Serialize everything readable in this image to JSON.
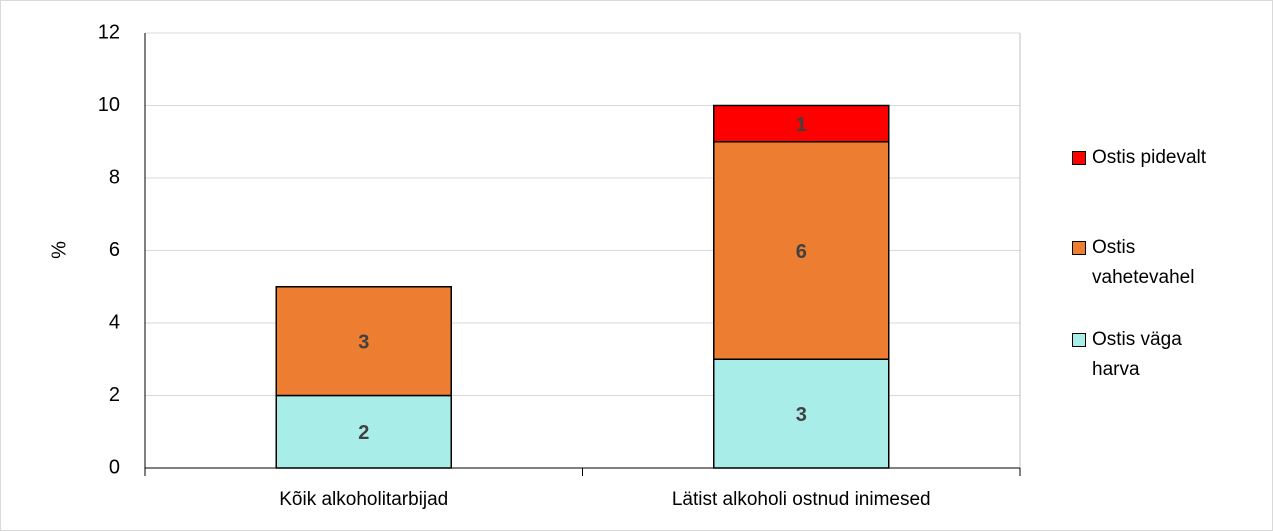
{
  "chart_data": {
    "type": "stacked_bar",
    "y_label": "%",
    "categories": [
      "Kõik alkoholitarbijad",
      "Lätist alkoholi ostnud inimesed"
    ],
    "series": [
      {
        "name": "Ostis väga harva",
        "color": "#a9ede8",
        "values": [
          2,
          3
        ]
      },
      {
        "name": "Ostis vahetevahel",
        "color": "#ed7d31",
        "values": [
          3,
          6
        ]
      },
      {
        "name": "Ostis pidevalt",
        "color": "#ff0000",
        "values": [
          null,
          1
        ]
      }
    ],
    "ylim": [
      0,
      12
    ],
    "yticks": [
      0,
      2,
      4,
      6,
      8,
      10,
      12
    ],
    "grid": true,
    "legend": "right"
  }
}
